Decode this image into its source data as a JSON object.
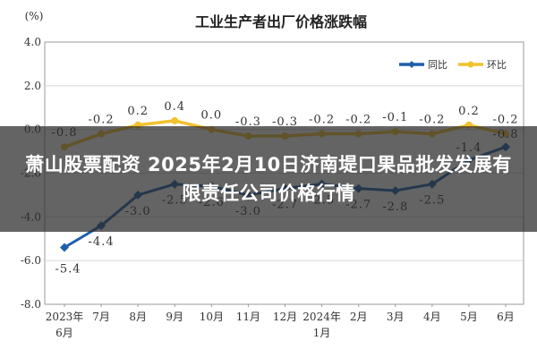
{
  "banner": {
    "headline": "萧山股票配资 2025年2月10日济南堤口果品批发发展有限责任公司价格行情"
  },
  "chart_data": {
    "type": "line",
    "title": "工业生产者出厂价格涨跌幅",
    "unit_label": "(%)",
    "categories": [
      "2023年6月",
      "7月",
      "8月",
      "9月",
      "10月",
      "11月",
      "12月",
      "2024年1月",
      "2月",
      "3月",
      "4月",
      "5月",
      "6月"
    ],
    "series": [
      {
        "name": "同比",
        "color": "#1f5fa8",
        "values": [
          -5.4,
          -4.4,
          -3.0,
          -2.5,
          -2.6,
          -3.0,
          -2.7,
          -2.5,
          -2.7,
          -2.8,
          -2.5,
          -1.4,
          -0.8
        ]
      },
      {
        "name": "环比",
        "color": "#f2c12e",
        "values": [
          -0.8,
          -0.2,
          0.2,
          0.4,
          0.0,
          -0.3,
          -0.3,
          -0.2,
          -0.2,
          -0.1,
          -0.2,
          0.2,
          -0.2
        ]
      }
    ],
    "ylim": [
      -8.0,
      4.0
    ],
    "yticks": [
      "4.0",
      "2.0",
      "0.0",
      "-2.0",
      "-4.0",
      "-6.0",
      "-8.0"
    ],
    "grid": true,
    "legend": "top-right"
  }
}
